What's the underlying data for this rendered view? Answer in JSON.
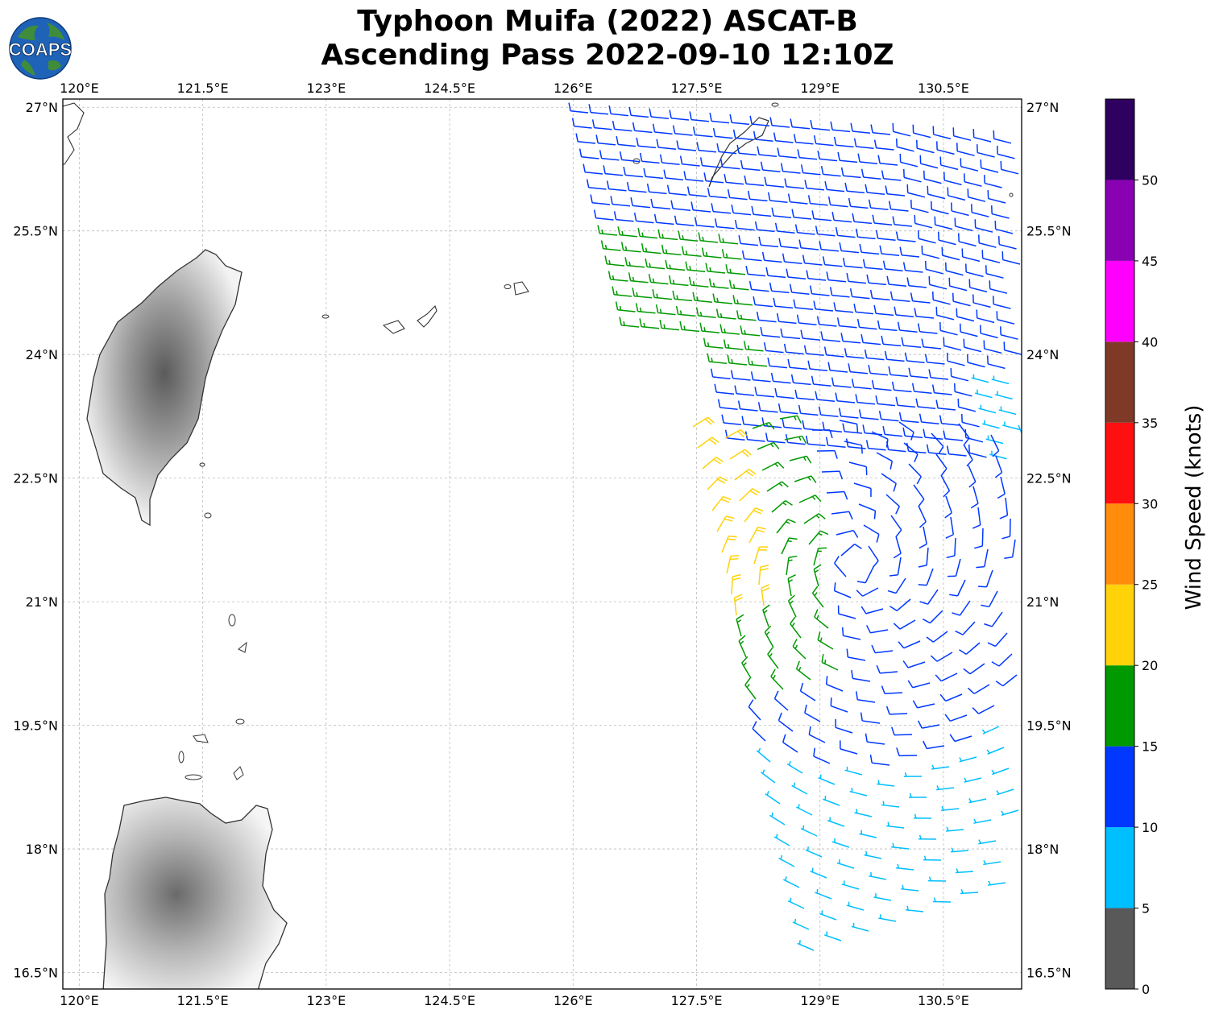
{
  "title": {
    "line1": "Typhoon Muifa (2022) ASCAT-B",
    "line2": "Ascending Pass 2022-09-10 12:10Z"
  },
  "logo": {
    "text": "COAPS",
    "icon": "globe-logo-icon"
  },
  "axes": {
    "lon_ticks": [
      "120°E",
      "121.5°E",
      "123°E",
      "124.5°E",
      "126°E",
      "127.5°E",
      "129°E",
      "130.5°E"
    ],
    "lat_ticks": [
      "27°N",
      "25.5°N",
      "24°N",
      "22.5°N",
      "21°N",
      "19.5°N",
      "18°N",
      "16.5°N"
    ],
    "lon_range": [
      119.8,
      131.45
    ],
    "lat_range": [
      16.3,
      27.1
    ],
    "grid": true
  },
  "colorbar": {
    "label": "Wind Speed (knots)",
    "ticks": [
      "0",
      "5",
      "10",
      "15",
      "20",
      "25",
      "30",
      "35",
      "40",
      "45",
      "50"
    ],
    "bins": [
      {
        "min": 0,
        "max": 5,
        "color": "#595959"
      },
      {
        "min": 5,
        "max": 10,
        "color": "#00bfff"
      },
      {
        "min": 10,
        "max": 15,
        "color": "#0038ff"
      },
      {
        "min": 15,
        "max": 20,
        "color": "#009900"
      },
      {
        "min": 20,
        "max": 25,
        "color": "#ffd20a"
      },
      {
        "min": 25,
        "max": 30,
        "color": "#ff8c0a"
      },
      {
        "min": 30,
        "max": 35,
        "color": "#ff1010"
      },
      {
        "min": 35,
        "max": 40,
        "color": "#7f3a27"
      },
      {
        "min": 40,
        "max": 45,
        "color": "#ff00ff"
      },
      {
        "min": 45,
        "max": 50,
        "color": "#8a00b3"
      },
      {
        "min": 50,
        "max": 55,
        "color": "#2e005f"
      }
    ]
  }
}
